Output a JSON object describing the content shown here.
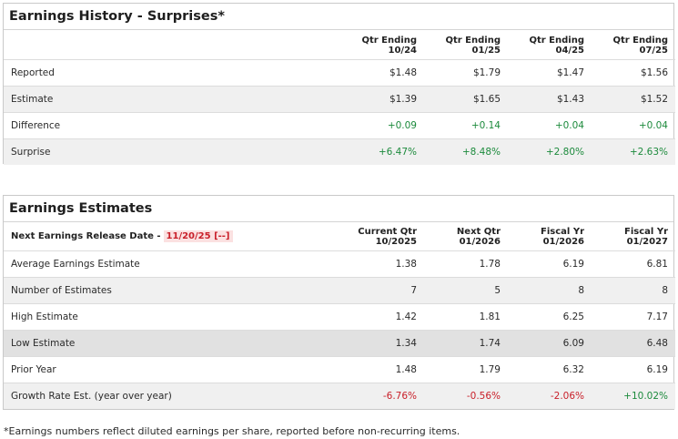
{
  "history": {
    "title": "Earnings History - Surprises*",
    "columns": [
      {
        "line1": "Qtr Ending",
        "line2": "10/24"
      },
      {
        "line1": "Qtr Ending",
        "line2": "01/25"
      },
      {
        "line1": "Qtr Ending",
        "line2": "04/25"
      },
      {
        "line1": "Qtr Ending",
        "line2": "07/25"
      }
    ],
    "rows": [
      {
        "label": "Reported",
        "values": [
          "$1.48",
          "$1.79",
          "$1.47",
          "$1.56"
        ]
      },
      {
        "label": "Estimate",
        "values": [
          "$1.39",
          "$1.65",
          "$1.43",
          "$1.52"
        ]
      },
      {
        "label": "Difference",
        "values": [
          "+0.09",
          "+0.14",
          "+0.04",
          "+0.04"
        ]
      },
      {
        "label": "Surprise",
        "values": [
          "+6.47%",
          "+8.48%",
          "+2.80%",
          "+2.63%"
        ]
      }
    ]
  },
  "estimates": {
    "title": "Earnings Estimates",
    "release_label": "Next Earnings Release Date -",
    "release_date": "11/20/25 [--]",
    "columns": [
      {
        "line1": "Current Qtr",
        "line2": "10/2025"
      },
      {
        "line1": "Next Qtr",
        "line2": "01/2026"
      },
      {
        "line1": "Fiscal Yr",
        "line2": "01/2026"
      },
      {
        "line1": "Fiscal Yr",
        "line2": "01/2027"
      }
    ],
    "rows": [
      {
        "label": "Average Earnings Estimate",
        "values": [
          "1.38",
          "1.78",
          "6.19",
          "6.81"
        ]
      },
      {
        "label": "Number of Estimates",
        "values": [
          "7",
          "5",
          "8",
          "8"
        ]
      },
      {
        "label": "High Estimate",
        "values": [
          "1.42",
          "1.81",
          "6.25",
          "7.17"
        ]
      },
      {
        "label": "Low Estimate",
        "values": [
          "1.34",
          "1.74",
          "6.09",
          "6.48"
        ]
      },
      {
        "label": "Prior Year",
        "values": [
          "1.48",
          "1.79",
          "6.32",
          "6.19"
        ]
      },
      {
        "label": "Growth Rate Est. (year over year)",
        "values": [
          "-6.76%",
          "-0.56%",
          "-2.06%",
          "+10.02%"
        ]
      }
    ]
  },
  "footnote": "*Earnings numbers reflect diluted earnings per share, reported before non-recurring items.",
  "colors": {
    "positive": "#1c8a3c",
    "negative": "#c9202a",
    "row_shade": "#f0f0f0",
    "row_shade_dark": "#e1e1e1"
  }
}
